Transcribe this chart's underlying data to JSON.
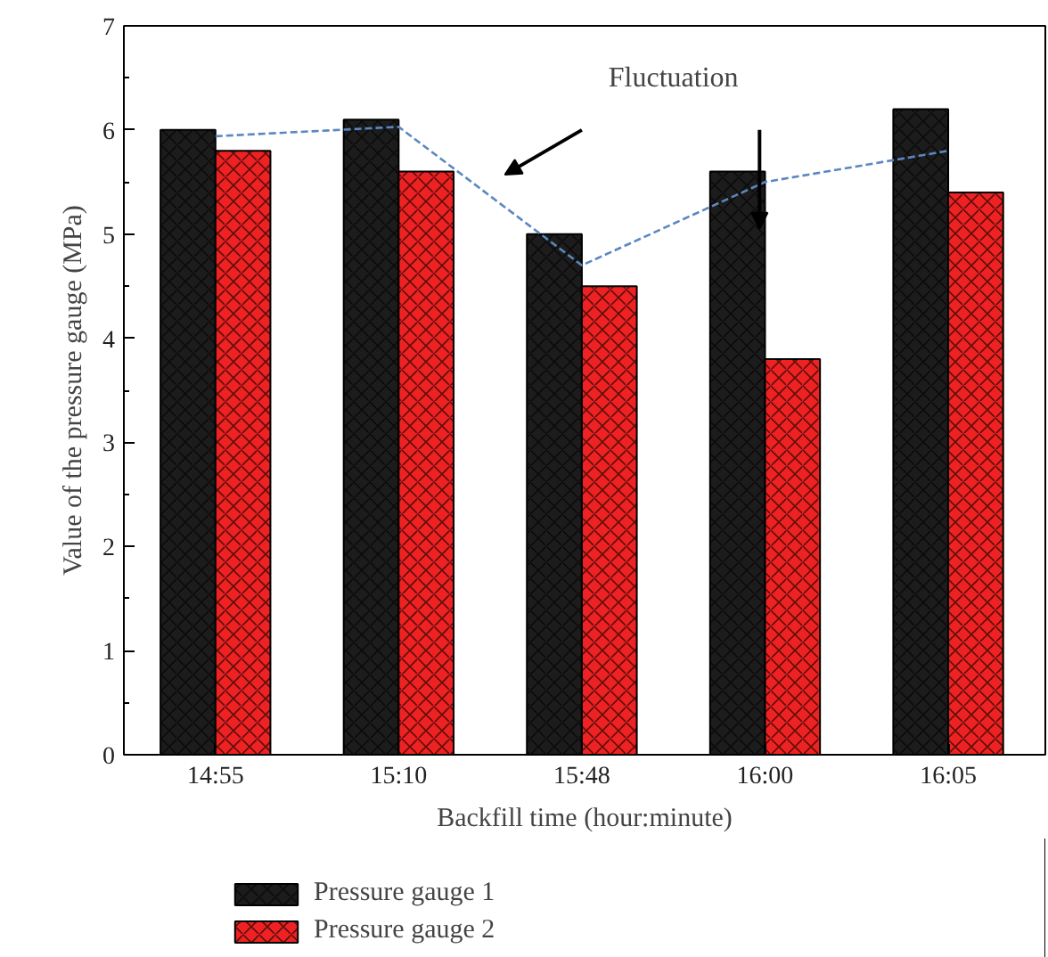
{
  "chart_data": {
    "type": "bar",
    "xlabel": "Backfill time (hour:minute)",
    "ylabel": "Value of the pressure gauge (MPa)",
    "categories": [
      "14:55",
      "15:10",
      "15:48",
      "16:00",
      "16:05"
    ],
    "series": [
      {
        "name": "Pressure gauge 1",
        "color": "#1c1c1c",
        "values": [
          6.0,
          6.1,
          5.0,
          5.6,
          6.2
        ]
      },
      {
        "name": "Pressure gauge 2",
        "color": "#ee2222",
        "values": [
          5.8,
          5.6,
          4.5,
          3.8,
          5.4
        ]
      },
      {
        "type": "line",
        "color": "#5b87c0",
        "line_style": "dashed",
        "values": [
          5.94,
          6.03,
          4.7,
          5.5,
          5.8
        ]
      }
    ],
    "annotations": [
      "Fluctuation"
    ],
    "ylim": [
      0,
      7
    ],
    "yticks": [
      0,
      1,
      2,
      3,
      4,
      5,
      6,
      7
    ],
    "grid": false,
    "legend": "bottom"
  }
}
